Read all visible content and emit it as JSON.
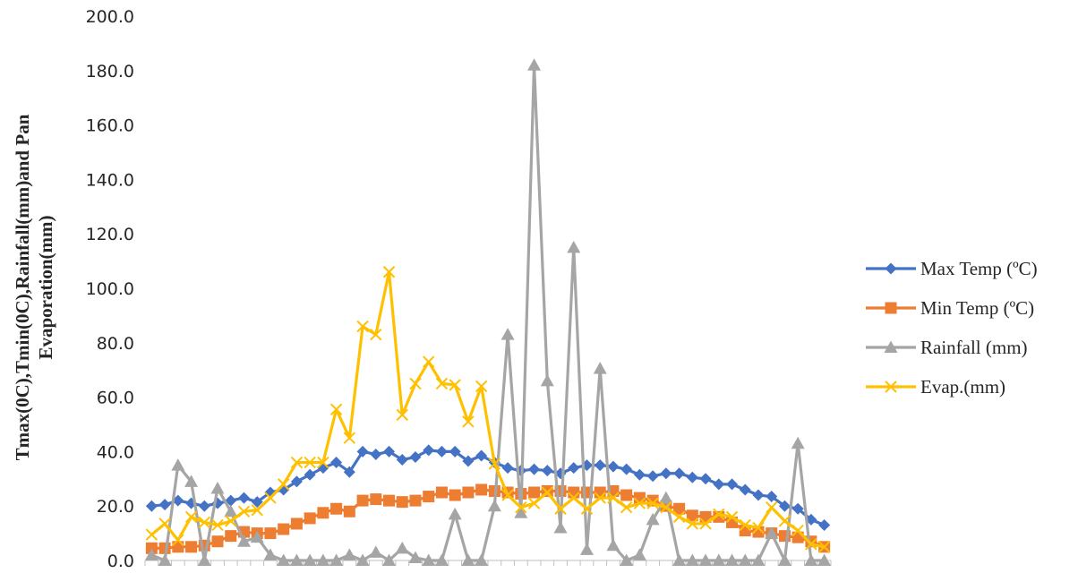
{
  "chart_data": {
    "type": "line",
    "title": "",
    "xlabel": "",
    "ylabel_lines": [
      "Tmax(0C),Tmin(0C),Rainfall(mm)and Pan",
      "Evaporation(mm)"
    ],
    "ylim": [
      0,
      200
    ],
    "yticks": [
      "0.0",
      "20.0",
      "40.0",
      "60.0",
      "80.0",
      "100.0",
      "120.0",
      "140.0",
      "160.0",
      "180.0",
      "200.0"
    ],
    "x_count": 52,
    "grid": false,
    "legend_position": "right",
    "series": [
      {
        "name": "Max Temp (ºC)",
        "color": "#4472c4",
        "marker": "diamond",
        "values": [
          20.0,
          20.5,
          22.0,
          21.0,
          20.0,
          21.0,
          22.0,
          23.0,
          21.5,
          25.0,
          26.0,
          29.0,
          31.5,
          34.0,
          36.0,
          32.5,
          40.0,
          39.0,
          40.0,
          37.0,
          38.0,
          40.5,
          40.0,
          40.0,
          36.5,
          38.5,
          36.0,
          34.0,
          33.0,
          33.5,
          33.0,
          32.0,
          34.0,
          35.0,
          35.0,
          34.5,
          33.5,
          31.5,
          31.0,
          32.0,
          32.0,
          30.5,
          30.0,
          28.0,
          28.0,
          26.0,
          24.0,
          23.5,
          20.0,
          19.0,
          15.0,
          13.0
        ]
      },
      {
        "name": "Min Temp (ºC)",
        "color": "#ed7d31",
        "marker": "square",
        "values": [
          4.5,
          4.5,
          5.0,
          5.0,
          5.5,
          7.0,
          9.0,
          10.5,
          10.0,
          10.0,
          11.5,
          13.5,
          15.5,
          17.5,
          19.0,
          18.0,
          22.0,
          22.5,
          22.0,
          21.5,
          22.0,
          23.5,
          25.0,
          24.0,
          25.0,
          26.0,
          25.5,
          25.0,
          24.5,
          25.0,
          25.5,
          25.5,
          25.0,
          25.0,
          25.0,
          25.5,
          24.0,
          23.0,
          22.0,
          20.0,
          19.0,
          16.5,
          16.0,
          16.0,
          14.0,
          11.0,
          10.5,
          10.0,
          9.0,
          8.5,
          7.0,
          5.0
        ]
      },
      {
        "name": "Rainfall (mm)",
        "color": "#a5a5a5",
        "marker": "triangle",
        "values": [
          2.0,
          0.0,
          35.0,
          29.0,
          0.0,
          26.5,
          18.0,
          7.0,
          8.5,
          2.0,
          0.0,
          0.0,
          0.0,
          0.0,
          0.0,
          2.0,
          0.0,
          3.0,
          0.0,
          4.5,
          1.0,
          0.0,
          0.0,
          17.0,
          0.0,
          0.0,
          20.0,
          83.0,
          17.5,
          182.0,
          66.0,
          12.0,
          115.0,
          4.0,
          70.5,
          5.5,
          0.0,
          2.0,
          15.0,
          23.0,
          0.0,
          0.0,
          0.0,
          0.0,
          0.0,
          0.0,
          0.0,
          10.0,
          0.0,
          43.0,
          0.0,
          0.0
        ]
      },
      {
        "name": "Evap.(mm)",
        "color": "#ffc000",
        "marker": "x",
        "values": [
          9.5,
          13.5,
          7.5,
          16.0,
          14.0,
          13.0,
          14.5,
          18.0,
          18.5,
          23.0,
          28.0,
          36.0,
          36.0,
          36.0,
          55.5,
          45.0,
          86.0,
          83.0,
          106.0,
          53.5,
          65.0,
          73.0,
          65.0,
          64.5,
          51.0,
          64.0,
          35.5,
          24.0,
          19.5,
          21.0,
          25.0,
          19.0,
          23.0,
          19.0,
          23.0,
          23.0,
          19.5,
          21.0,
          21.0,
          19.5,
          16.0,
          13.5,
          13.5,
          17.0,
          16.0,
          13.0,
          12.0,
          19.5,
          14.5,
          11.0,
          6.0,
          5.0
        ]
      }
    ]
  }
}
